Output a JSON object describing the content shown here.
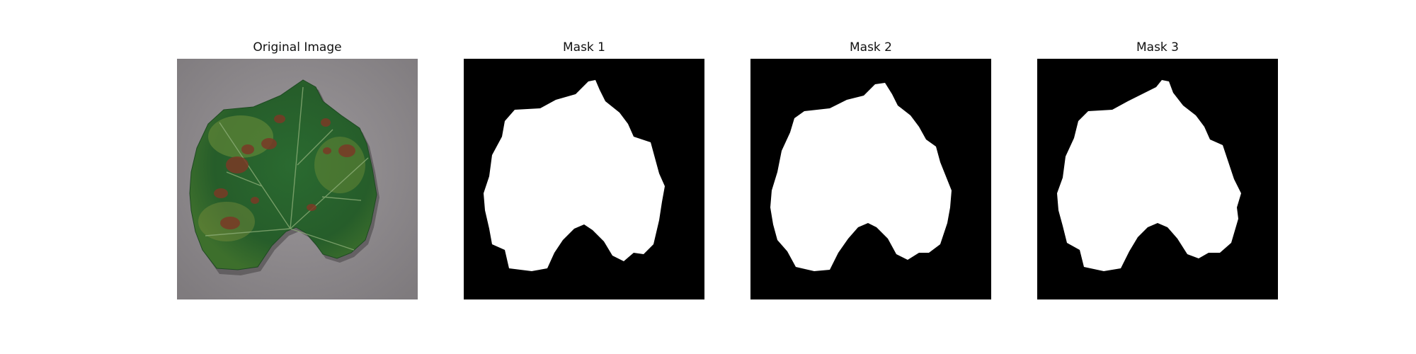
{
  "figure": {
    "panels": [
      {
        "title": "Original Image",
        "kind": "photo",
        "subject": "grape-leaf-photo"
      },
      {
        "title": "Mask 1",
        "kind": "mask"
      },
      {
        "title": "Mask 2",
        "kind": "mask"
      },
      {
        "title": "Mask 3",
        "kind": "mask"
      }
    ]
  },
  "colors": {
    "mask_background": "#000000",
    "mask_foreground": "#ffffff",
    "photo_background": "#8f8b8e",
    "leaf_dark": "#1f4f27",
    "leaf_mid": "#2f6b32",
    "leaf_light": "#6f8f3a",
    "lesion": "#7a3a26"
  }
}
